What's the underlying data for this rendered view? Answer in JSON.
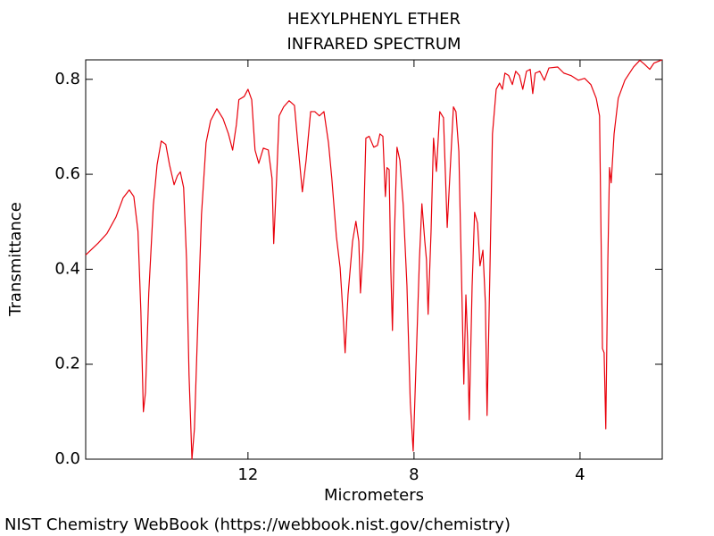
{
  "chart_data": {
    "type": "line",
    "title": "HEXYLPHENYL ETHER",
    "subtitle": "INFRARED SPECTRUM",
    "x_label": "Micrometers",
    "y_label": "Transmittance",
    "footer": "NIST Chemistry WebBook (https://webbook.nist.gov/chemistry)",
    "xlim": [
      15.91,
      2.02
    ],
    "ylim": [
      0,
      0.841
    ],
    "xticks": [
      12,
      8,
      4
    ],
    "yticks": [
      {
        "value": 0,
        "label": "0.0"
      },
      0.2,
      0.4,
      0.6,
      0.8
    ],
    "series": [
      {
        "color": "#e8000b",
        "x": [
          15.91,
          15.61,
          15.4,
          15.18,
          15.01,
          14.86,
          14.75,
          14.65,
          14.58,
          14.52,
          14.47,
          14.39,
          14.28,
          14.19,
          14.09,
          13.98,
          13.89,
          13.78,
          13.7,
          13.63,
          13.55,
          13.48,
          13.42,
          13.35,
          13.29,
          13.2,
          13.12,
          13.01,
          12.9,
          12.75,
          12.6,
          12.47,
          12.37,
          12.28,
          12.22,
          12.09,
          12.0,
          11.91,
          11.83,
          11.74,
          11.63,
          11.51,
          11.42,
          11.38,
          11.31,
          11.25,
          11.14,
          11.01,
          10.88,
          10.8,
          10.69,
          10.6,
          10.49,
          10.39,
          10.28,
          10.17,
          10.06,
          9.98,
          9.87,
          9.78,
          9.7,
          9.66,
          9.59,
          9.48,
          9.4,
          9.33,
          9.29,
          9.23,
          9.16,
          9.08,
          8.97,
          8.88,
          8.82,
          8.75,
          8.69,
          8.65,
          8.6,
          8.56,
          8.52,
          8.47,
          8.41,
          8.34,
          8.26,
          8.17,
          8.09,
          8.02,
          7.96,
          7.87,
          7.81,
          7.74,
          7.7,
          7.66,
          7.59,
          7.53,
          7.46,
          7.38,
          7.29,
          7.2,
          7.14,
          7.05,
          6.99,
          6.92,
          6.86,
          6.8,
          6.75,
          6.71,
          6.67,
          6.6,
          6.54,
          6.47,
          6.41,
          6.34,
          6.28,
          6.24,
          6.17,
          6.11,
          6.02,
          5.94,
          5.87,
          5.81,
          5.72,
          5.63,
          5.55,
          5.46,
          5.38,
          5.29,
          5.2,
          5.14,
          5.08,
          4.97,
          4.86,
          4.75,
          4.54,
          4.39,
          4.22,
          4.04,
          3.89,
          3.74,
          3.61,
          3.53,
          3.46,
          3.42,
          3.38,
          3.33,
          3.29,
          3.25,
          3.18,
          3.08,
          2.92,
          2.71,
          2.56,
          2.45,
          2.32,
          2.22,
          2.11,
          2.02
        ],
        "values": [
          0.43,
          0.455,
          0.475,
          0.51,
          0.55,
          0.567,
          0.553,
          0.48,
          0.31,
          0.1,
          0.14,
          0.35,
          0.535,
          0.62,
          0.67,
          0.663,
          0.62,
          0.578,
          0.597,
          0.605,
          0.572,
          0.42,
          0.177,
          0.0,
          0.064,
          0.31,
          0.515,
          0.666,
          0.713,
          0.738,
          0.717,
          0.685,
          0.651,
          0.704,
          0.757,
          0.764,
          0.779,
          0.757,
          0.651,
          0.623,
          0.655,
          0.651,
          0.591,
          0.454,
          0.591,
          0.723,
          0.742,
          0.755,
          0.745,
          0.666,
          0.563,
          0.629,
          0.732,
          0.732,
          0.723,
          0.732,
          0.666,
          0.591,
          0.469,
          0.403,
          0.29,
          0.224,
          0.346,
          0.459,
          0.501,
          0.459,
          0.35,
          0.44,
          0.676,
          0.68,
          0.657,
          0.661,
          0.685,
          0.68,
          0.553,
          0.614,
          0.61,
          0.403,
          0.271,
          0.478,
          0.657,
          0.629,
          0.535,
          0.365,
          0.12,
          0.017,
          0.177,
          0.42,
          0.538,
          0.459,
          0.42,
          0.305,
          0.478,
          0.676,
          0.606,
          0.732,
          0.719,
          0.488,
          0.591,
          0.742,
          0.732,
          0.648,
          0.403,
          0.158,
          0.346,
          0.252,
          0.083,
          0.365,
          0.52,
          0.497,
          0.407,
          0.44,
          0.328,
          0.092,
          0.403,
          0.685,
          0.779,
          0.792,
          0.779,
          0.813,
          0.808,
          0.789,
          0.817,
          0.808,
          0.779,
          0.817,
          0.821,
          0.77,
          0.813,
          0.817,
          0.798,
          0.824,
          0.826,
          0.813,
          0.808,
          0.798,
          0.802,
          0.789,
          0.76,
          0.723,
          0.233,
          0.224,
          0.064,
          0.42,
          0.614,
          0.582,
          0.685,
          0.76,
          0.798,
          0.826,
          0.84,
          0.832,
          0.821,
          0.834,
          0.838,
          0.841
        ]
      }
    ]
  }
}
